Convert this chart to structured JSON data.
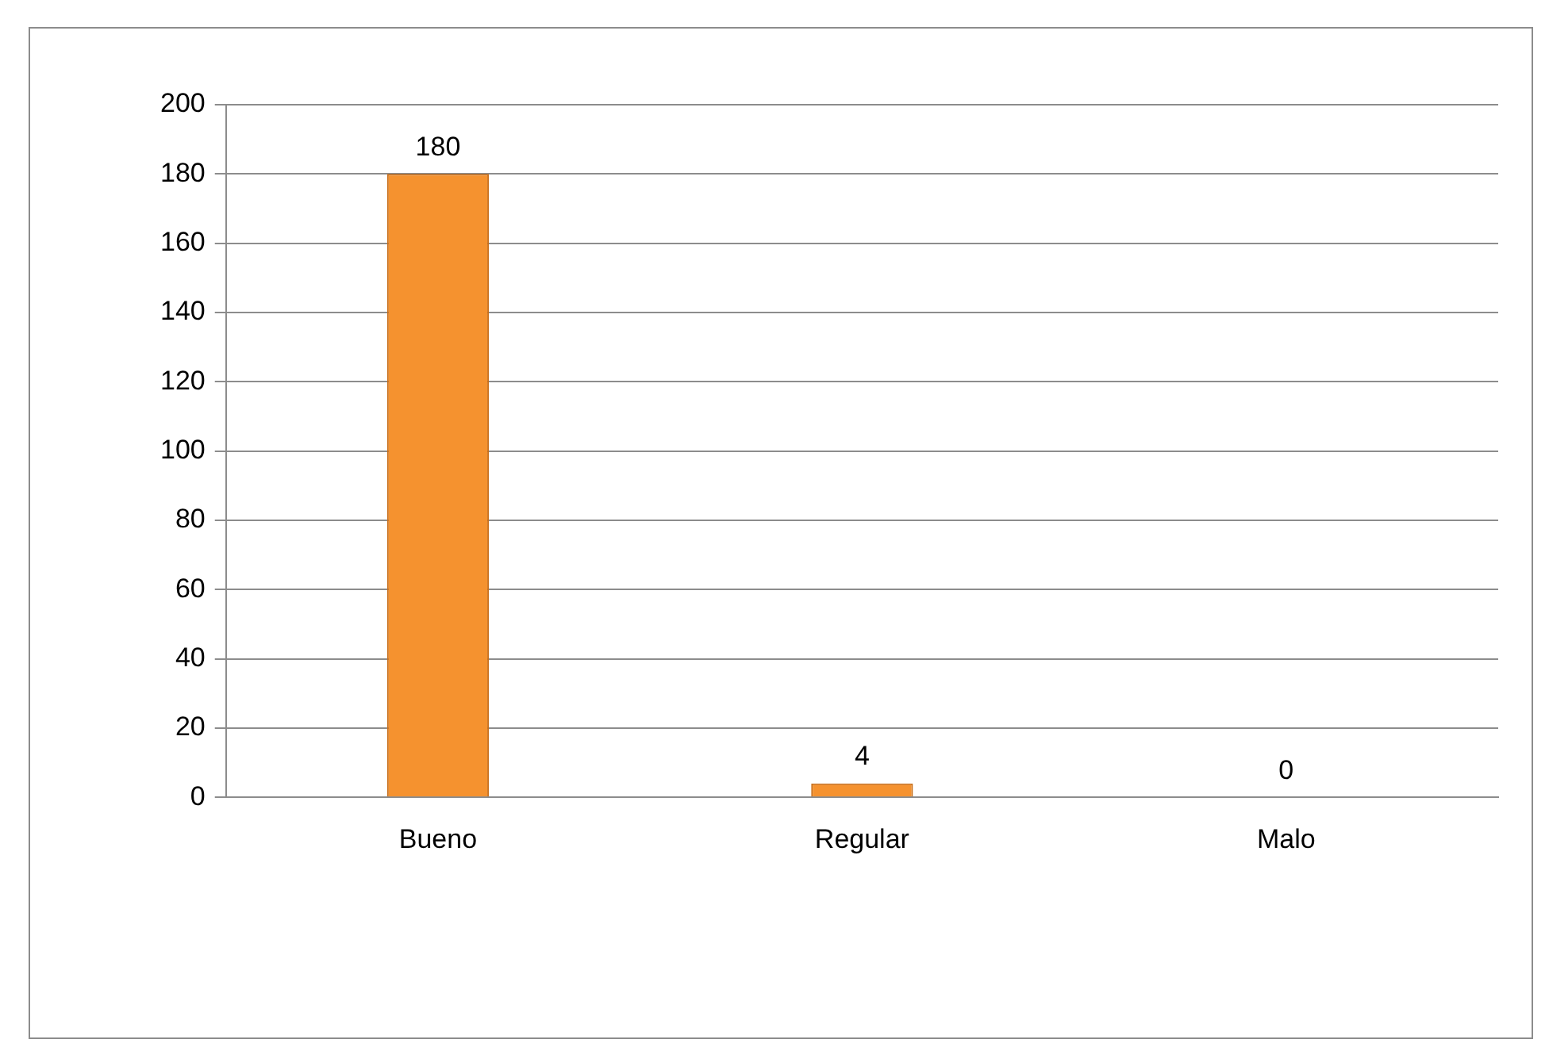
{
  "chart_data": {
    "type": "bar",
    "categories": [
      "Bueno",
      "Regular",
      "Malo"
    ],
    "values": [
      180,
      4,
      0
    ],
    "color": "#f5922f",
    "ylim": [
      0,
      200
    ],
    "yticks": [
      0,
      20,
      40,
      60,
      80,
      100,
      120,
      140,
      160,
      180,
      200
    ],
    "grid": "y",
    "data_labels": true
  }
}
